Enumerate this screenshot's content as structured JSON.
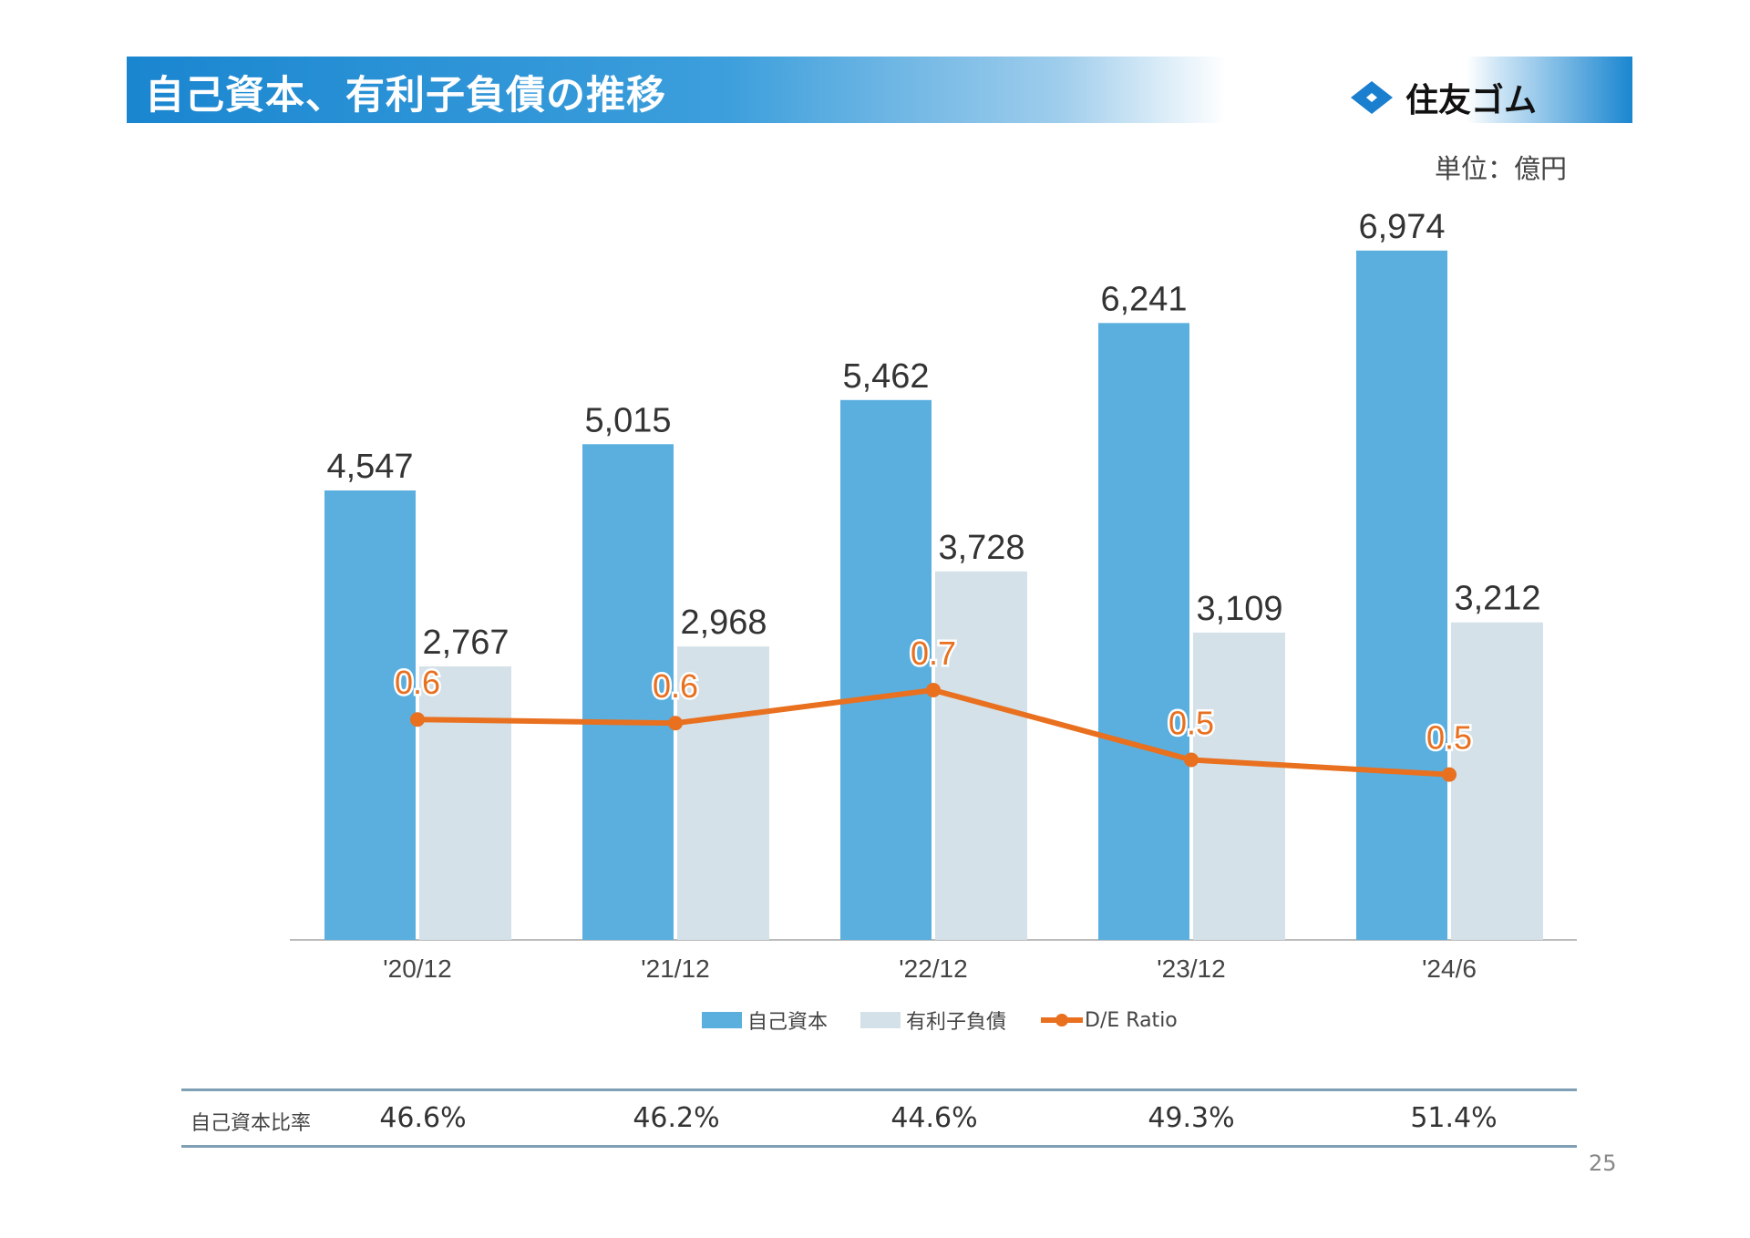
{
  "header": {
    "title": "自己資本、有利子負債の推移",
    "logo_text": "住友ゴム"
  },
  "unit_label": "単位：億円",
  "chart_data": {
    "type": "bar",
    "categories": [
      "'20/12",
      "'21/12",
      "'22/12",
      "'23/12",
      "'24/6"
    ],
    "series": [
      {
        "name": "自己資本",
        "type": "bar",
        "color": "#5aafdf",
        "values": [
          4547,
          5015,
          5462,
          6241,
          6974
        ],
        "labels": [
          "4,547",
          "5,015",
          "5,462",
          "6,241",
          "6,974"
        ]
      },
      {
        "name": "有利子負債",
        "type": "bar",
        "color": "#d4e1e8",
        "values": [
          2767,
          2968,
          3728,
          3109,
          3212
        ],
        "labels": [
          "2,767",
          "2,968",
          "3,728",
          "3,109",
          "3,212"
        ]
      },
      {
        "name": "D/E Ratio",
        "type": "line",
        "color": "#e8701f",
        "values": [
          0.6,
          0.59,
          0.68,
          0.49,
          0.45
        ],
        "labels": [
          "0.6",
          "0.6",
          "0.7",
          "0.5",
          "0.5"
        ]
      }
    ],
    "ylim": [
      0,
      7000
    ],
    "y2lim": [
      0,
      1.0
    ],
    "grid": false,
    "legend": "bottom"
  },
  "ratio_table": {
    "label": "自己資本比率",
    "values": [
      "46.6%",
      "46.2%",
      "44.6%",
      "49.3%",
      "51.4%"
    ]
  },
  "page_number": "25"
}
